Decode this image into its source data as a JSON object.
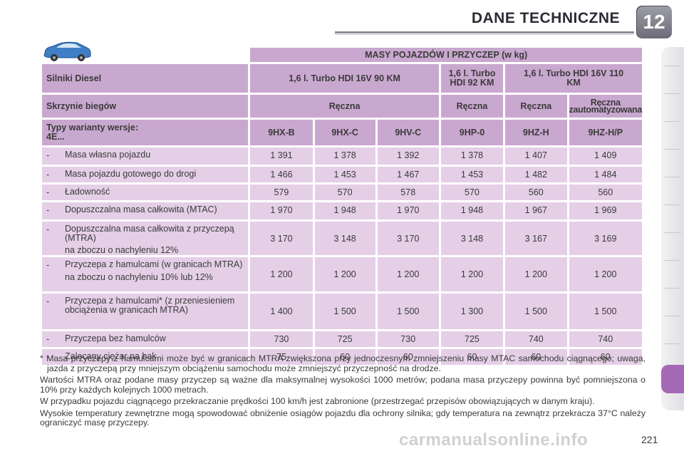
{
  "header": {
    "title": "DANE TECHNICZNE",
    "chapter": "12"
  },
  "table": {
    "title": "MASY POJAZDÓW I PRZYCZEP (w kg)",
    "engine_label": "Silniki Diesel",
    "engines": [
      "1,6 l. Turbo HDI 16V 90 KM",
      "1,6 l. Turbo HDI 92 KM",
      "1,6 l. Turbo HDI 16V 110 KM"
    ],
    "gearbox_label": "Skrzynie biegów",
    "gearboxes": [
      "Ręczna",
      "Ręczna",
      "Ręczna",
      "Ręczna zautomatyzowana"
    ],
    "types_label_line1": "Typy warianty wersje:",
    "types_label_line2": "4E...",
    "types": [
      "9HX-B",
      "9HX-C",
      "9HV-C",
      "9HP-0",
      "9HZ-H",
      "9HZ-H/P"
    ],
    "rows": [
      {
        "dash": "-",
        "label": "Masa własna pojazdu",
        "sub": "",
        "values": [
          "1 391",
          "1 378",
          "1 392",
          "1 378",
          "1 407",
          "1 409"
        ]
      },
      {
        "dash": "-",
        "label": "Masa pojazdu gotowego do drogi",
        "sub": "",
        "values": [
          "1 466",
          "1 453",
          "1 467",
          "1 453",
          "1 482",
          "1 484"
        ]
      },
      {
        "dash": "-",
        "label": "Ładowność",
        "sub": "",
        "values": [
          "579",
          "570",
          "578",
          "570",
          "560",
          "560"
        ]
      },
      {
        "dash": "-",
        "label": "Dopuszczalna masa całkowita (MTAC)",
        "sub": "",
        "values": [
          "1 970",
          "1 948",
          "1 970",
          "1 948",
          "1 967",
          "1 969"
        ]
      },
      {
        "dash": "-",
        "label": "Dopuszczalna masa całkowita z przyczepą (MTRA)",
        "sub": "na zboczu o nachyleniu 12%",
        "values": [
          "3 170",
          "3 148",
          "3 170",
          "3 148",
          "3 167",
          "3 169"
        ]
      },
      {
        "dash": "-",
        "label": "Przyczepa z hamulcami (w granicach MTRA)",
        "sub": "na zboczu o nachyleniu 10% lub 12%",
        "values": [
          "1 200",
          "1 200",
          "1 200",
          "1 200",
          "1 200",
          "1 200"
        ]
      },
      {
        "dash": "-",
        "label": "Przyczepa z hamulcami* (z przeniesieniem obciążenia w granicach MTRA)",
        "sub": "",
        "values": [
          "1 400",
          "1 500",
          "1 500",
          "1 300",
          "1 500",
          "1 500"
        ]
      },
      {
        "dash": "-",
        "label": "Przyczepa bez hamulców",
        "sub": "",
        "values": [
          "730",
          "725",
          "730",
          "725",
          "740",
          "740"
        ]
      },
      {
        "dash": "-",
        "label": "Zalecany ciężar na hak",
        "sub": "",
        "values": [
          "75",
          "60",
          "60",
          "60",
          "60",
          "60"
        ]
      }
    ]
  },
  "notes": [
    "* Masa przyczepy z hamulcami może być w granicach MTRA zwiększona przy jednoczesnym zmniejszeniu masy MTAC samochodu ciągnącego; uwaga, jazda z przyczepą przy mniejszym obciążeniu samochodu może zmniejszyć przyczepność na drodze.",
    "Wartości MTRA oraz podane masy przyczep są ważne dla maksymalnej wysokości 1000 metrów; podana masa przyczepy powinna być pomniejszona o 10% przy każdych kolejnych 1000 metrach.",
    "W przypadku pojazdu ciągnącego przekraczanie prędkości 100 km/h jest zabronione (przestrzegać przepisów obowiązujących w danym kraju).",
    "Wysokie temperatury zewnętrzne mogą spowodować obniżenie osiągów pojazdu dla ochrony silnika; gdy temperatura na zewnątrz przekracza 37°C należy ograniczyć masę przyczepy."
  ],
  "page_number": "221",
  "watermark": "carmanualsonline.info",
  "colors": {
    "header_purple": "#c9a8cf",
    "cell_purple": "#e4cfe7",
    "accent_tab": "#a569b6"
  }
}
